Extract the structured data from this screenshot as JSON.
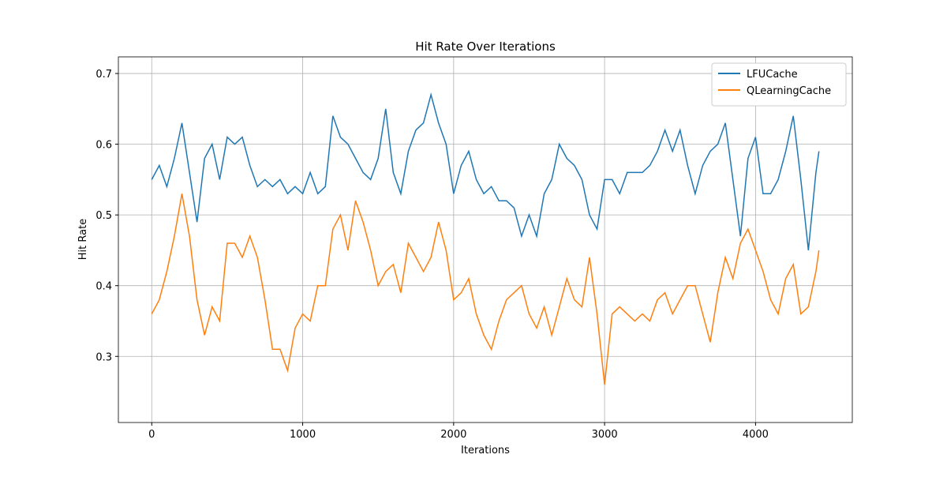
{
  "chart_data": {
    "type": "line",
    "title": "Hit Rate Over Iterations",
    "xlabel": "Iterations",
    "ylabel": "Hit Rate",
    "x": [
      0,
      50,
      100,
      150,
      200,
      250,
      300,
      350,
      400,
      450,
      500,
      550,
      600,
      650,
      700,
      750,
      800,
      850,
      900,
      950,
      1000,
      1050,
      1100,
      1150,
      1200,
      1250,
      1300,
      1350,
      1400,
      1450,
      1500,
      1550,
      1600,
      1650,
      1700,
      1750,
      1800,
      1850,
      1900,
      1950,
      2000,
      2050,
      2100,
      2150,
      2200,
      2250,
      2300,
      2350,
      2400,
      2450,
      2500,
      2550,
      2600,
      2650,
      2700,
      2750,
      2800,
      2850,
      2900,
      2950,
      3000,
      3050,
      3100,
      3150,
      3200,
      3250,
      3300,
      3350,
      3400,
      3450,
      3500,
      3550,
      3600,
      3650,
      3700,
      3750,
      3800,
      3850,
      3900,
      3950,
      4000,
      4050,
      4100,
      4150,
      4200,
      4250,
      4300,
      4350,
      4400,
      4420
    ],
    "series": [
      {
        "name": "LFUCache",
        "color": "#1f77b4",
        "values": [
          0.55,
          0.57,
          0.54,
          0.58,
          0.63,
          0.56,
          0.49,
          0.58,
          0.6,
          0.55,
          0.61,
          0.6,
          0.61,
          0.57,
          0.54,
          0.55,
          0.54,
          0.55,
          0.53,
          0.54,
          0.53,
          0.56,
          0.53,
          0.54,
          0.64,
          0.61,
          0.6,
          0.58,
          0.56,
          0.55,
          0.58,
          0.65,
          0.56,
          0.53,
          0.59,
          0.62,
          0.63,
          0.67,
          0.63,
          0.6,
          0.53,
          0.57,
          0.59,
          0.55,
          0.53,
          0.54,
          0.52,
          0.52,
          0.51,
          0.47,
          0.5,
          0.47,
          0.53,
          0.55,
          0.6,
          0.58,
          0.57,
          0.55,
          0.5,
          0.48,
          0.55,
          0.55,
          0.53,
          0.56,
          0.56,
          0.56,
          0.57,
          0.59,
          0.62,
          0.59,
          0.62,
          0.57,
          0.53,
          0.57,
          0.59,
          0.6,
          0.63,
          0.55,
          0.47,
          0.58,
          0.61,
          0.53,
          0.53,
          0.55,
          0.59,
          0.64,
          0.55,
          0.45,
          0.56,
          0.59
        ]
      },
      {
        "name": "QLearningCache",
        "color": "#ff7f0e",
        "values": [
          0.36,
          0.38,
          0.42,
          0.47,
          0.53,
          0.47,
          0.38,
          0.33,
          0.37,
          0.35,
          0.46,
          0.46,
          0.44,
          0.47,
          0.44,
          0.38,
          0.31,
          0.31,
          0.28,
          0.34,
          0.36,
          0.35,
          0.4,
          0.4,
          0.48,
          0.5,
          0.45,
          0.52,
          0.49,
          0.45,
          0.4,
          0.42,
          0.43,
          0.39,
          0.46,
          0.44,
          0.42,
          0.44,
          0.49,
          0.45,
          0.38,
          0.39,
          0.41,
          0.36,
          0.33,
          0.31,
          0.35,
          0.38,
          0.39,
          0.4,
          0.36,
          0.34,
          0.37,
          0.33,
          0.37,
          0.41,
          0.38,
          0.37,
          0.44,
          0.36,
          0.26,
          0.36,
          0.37,
          0.36,
          0.35,
          0.36,
          0.35,
          0.38,
          0.39,
          0.36,
          0.38,
          0.4,
          0.4,
          0.36,
          0.32,
          0.39,
          0.44,
          0.41,
          0.46,
          0.48,
          0.45,
          0.42,
          0.38,
          0.36,
          0.41,
          0.43,
          0.36,
          0.37,
          0.42,
          0.45
        ]
      }
    ],
    "xlim": [
      -221,
      4641
    ],
    "ylim": [
      0.2065,
      0.7235
    ],
    "xticks": [
      0,
      1000,
      2000,
      3000,
      4000
    ],
    "yticks": [
      0.3,
      0.4,
      0.5,
      0.6,
      0.7
    ],
    "grid": true,
    "legend": "upper right"
  }
}
